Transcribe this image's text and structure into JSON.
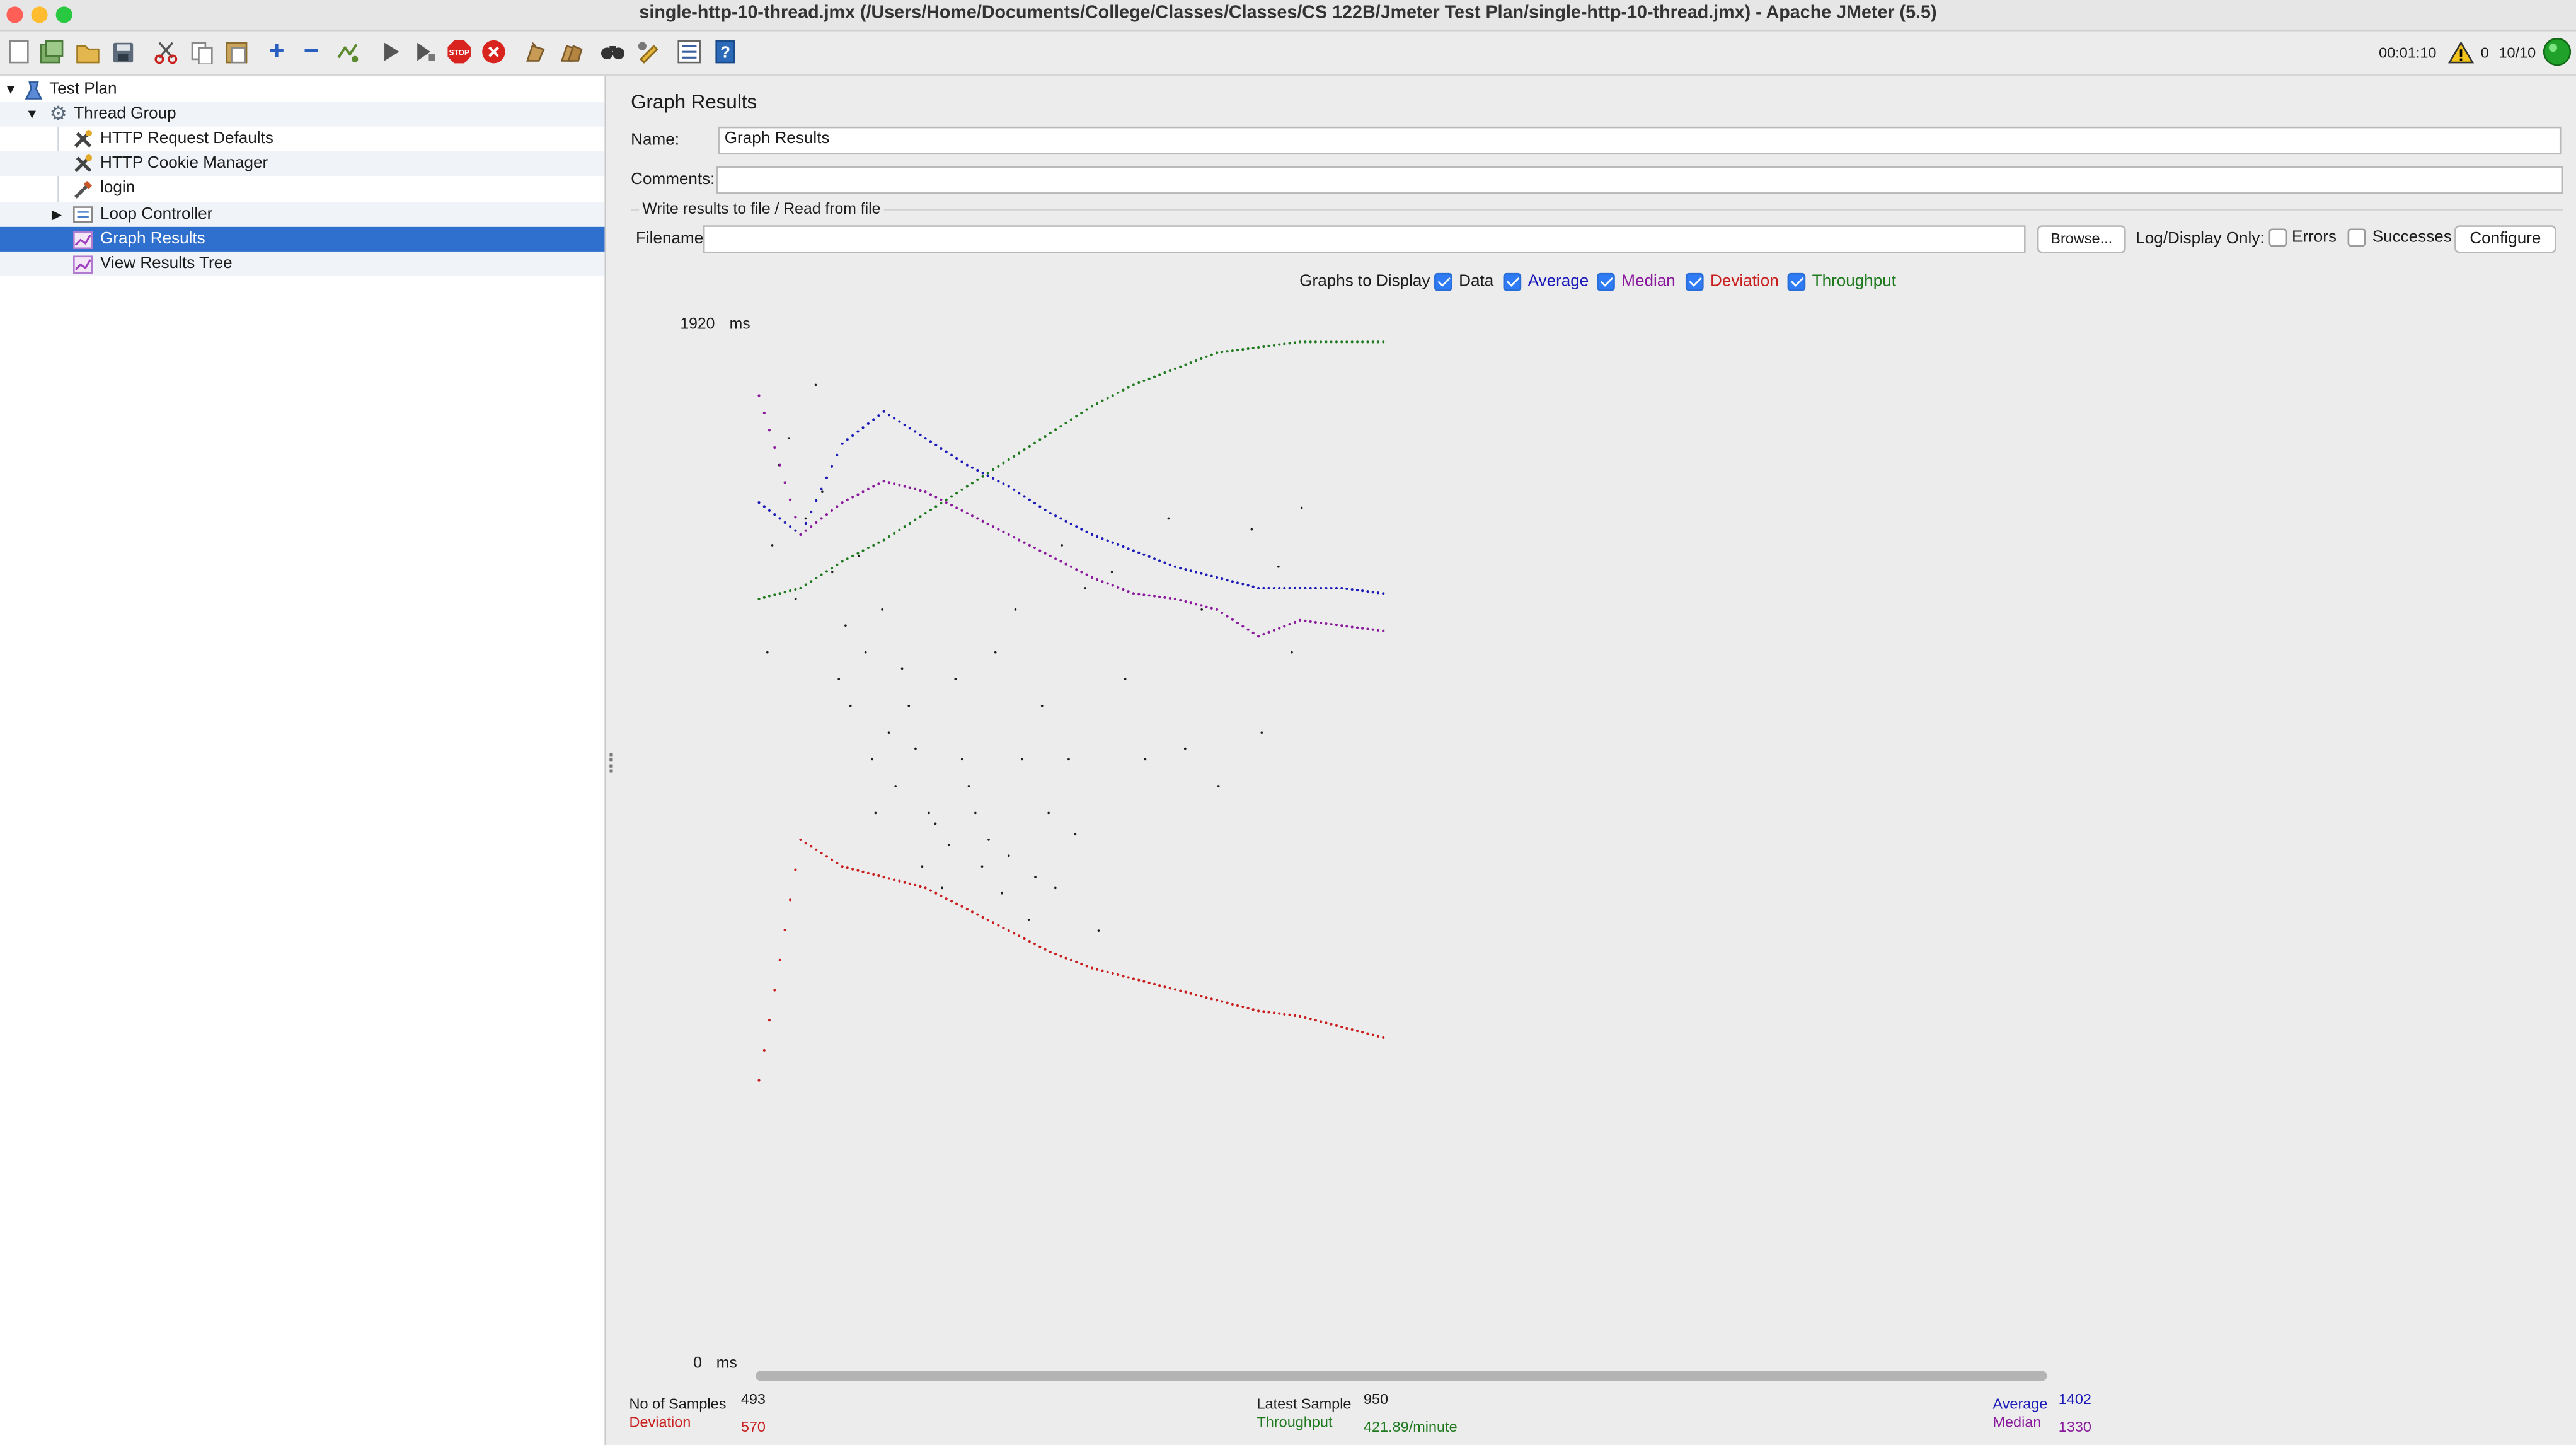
{
  "window": {
    "title": "single-http-10-thread.jmx (/Users/Home/Documents/College/Classes/Classes/CS 122B/Jmeter Test Plan/single-http-10-thread.jmx) - Apache JMeter (5.5)"
  },
  "toolbar": {
    "elapsed": "00:01:10",
    "warnings": "0",
    "threads": "10/10"
  },
  "tree": {
    "items": [
      {
        "label": "Test Plan",
        "icon": "test-plan-icon"
      },
      {
        "label": "Thread Group",
        "icon": "gear-icon"
      },
      {
        "label": "HTTP Request Defaults",
        "icon": "wrench-icon"
      },
      {
        "label": "HTTP Cookie Manager",
        "icon": "wrench-icon"
      },
      {
        "label": "login",
        "icon": "pipette-icon"
      },
      {
        "label": "Loop Controller",
        "icon": "loop-icon"
      },
      {
        "label": "Graph Results",
        "icon": "graph-icon",
        "selected": true
      },
      {
        "label": "View Results Tree",
        "icon": "graph-icon"
      }
    ]
  },
  "panel": {
    "heading": "Graph Results",
    "name_label": "Name:",
    "name_value": "Graph Results",
    "comments_label": "Comments:",
    "comments_value": "",
    "file_section": "Write results to file / Read from file",
    "filename_label": "Filename",
    "filename_value": "",
    "browse_label": "Browse...",
    "log_only_label": "Log/Display Only:",
    "errors_label": "Errors",
    "successes_label": "Successes",
    "configure_label": "Configure",
    "graphs_label": "Graphs to Display",
    "graphs": [
      {
        "label": "Data",
        "checked": true,
        "color": "#1b1b1b"
      },
      {
        "label": "Average",
        "checked": true,
        "color": "#1a1ab8"
      },
      {
        "label": "Median",
        "checked": true,
        "color": "#8a1a9c"
      },
      {
        "label": "Deviation",
        "checked": true,
        "color": "#c81e1e"
      },
      {
        "label": "Throughput",
        "checked": true,
        "color": "#1f7a1f"
      }
    ]
  },
  "chart_data": {
    "type": "scatter",
    "y_max_label": "1920",
    "y_min_label": "0",
    "y_unit": "ms",
    "ylim": [
      0,
      1920
    ],
    "x": [
      0,
      25,
      50,
      75,
      100,
      125,
      150,
      175,
      200,
      225,
      250,
      275,
      300,
      325,
      350,
      375
    ],
    "series": [
      {
        "name": "Average",
        "color": "#1a1ab8",
        "values": [
          1580,
          1520,
          1690,
          1750,
          1700,
          1650,
          1610,
          1560,
          1520,
          1490,
          1460,
          1440,
          1420,
          1420,
          1420,
          1410
        ]
      },
      {
        "name": "Median",
        "color": "#8a1a9c",
        "values": [
          1780,
          1520,
          1580,
          1620,
          1600,
          1560,
          1520,
          1480,
          1440,
          1410,
          1400,
          1380,
          1330,
          1360,
          1350,
          1340
        ]
      },
      {
        "name": "Deviation",
        "color": "#c81e1e",
        "values": [
          500,
          950,
          900,
          880,
          860,
          820,
          780,
          740,
          710,
          690,
          670,
          650,
          630,
          620,
          600,
          580
        ]
      },
      {
        "name": "Throughput",
        "color": "#1f7a1f",
        "values": [
          1400,
          1420,
          1470,
          1510,
          1560,
          1610,
          1660,
          1710,
          1760,
          1800,
          1830,
          1860,
          1870,
          1880,
          1880,
          1880
        ]
      }
    ],
    "data_points": [
      [
        5,
        1300
      ],
      [
        8,
        1500
      ],
      [
        12,
        1650
      ],
      [
        18,
        1700
      ],
      [
        22,
        1400
      ],
      [
        28,
        1550
      ],
      [
        34,
        1800
      ],
      [
        38,
        1600
      ],
      [
        44,
        1450
      ],
      [
        48,
        1250
      ],
      [
        52,
        1350
      ],
      [
        55,
        1200
      ],
      [
        60,
        1480
      ],
      [
        64,
        1300
      ],
      [
        68,
        1100
      ],
      [
        70,
        1000
      ],
      [
        74,
        1380
      ],
      [
        78,
        1150
      ],
      [
        82,
        1050
      ],
      [
        86,
        1270
      ],
      [
        90,
        1200
      ],
      [
        94,
        1120
      ],
      [
        98,
        900
      ],
      [
        102,
        1000
      ],
      [
        106,
        980
      ],
      [
        110,
        860
      ],
      [
        114,
        940
      ],
      [
        118,
        1250
      ],
      [
        122,
        1100
      ],
      [
        126,
        1050
      ],
      [
        130,
        1000
      ],
      [
        134,
        900
      ],
      [
        138,
        950
      ],
      [
        142,
        1300
      ],
      [
        146,
        850
      ],
      [
        150,
        920
      ],
      [
        154,
        1380
      ],
      [
        158,
        1100
      ],
      [
        162,
        800
      ],
      [
        166,
        880
      ],
      [
        170,
        1200
      ],
      [
        174,
        1000
      ],
      [
        178,
        860
      ],
      [
        182,
        1500
      ],
      [
        186,
        1100
      ],
      [
        190,
        960
      ],
      [
        196,
        1420
      ],
      [
        204,
        780
      ],
      [
        212,
        1450
      ],
      [
        220,
        1250
      ],
      [
        232,
        1100
      ],
      [
        246,
        1550
      ],
      [
        256,
        1120
      ],
      [
        266,
        1380
      ],
      [
        276,
        1050
      ],
      [
        296,
        1530
      ],
      [
        302,
        1150
      ],
      [
        312,
        1460
      ],
      [
        320,
        1300
      ],
      [
        326,
        1570
      ]
    ]
  },
  "stats": {
    "samples_label": "No of Samples",
    "samples_value": "493",
    "deviation_label": "Deviation",
    "deviation_value": "570",
    "latest_label": "Latest Sample",
    "latest_value": "950",
    "throughput_label": "Throughput",
    "throughput_value": "421.89/minute",
    "average_label": "Average",
    "average_value": "1402",
    "median_label": "Median",
    "median_value": "1330"
  }
}
